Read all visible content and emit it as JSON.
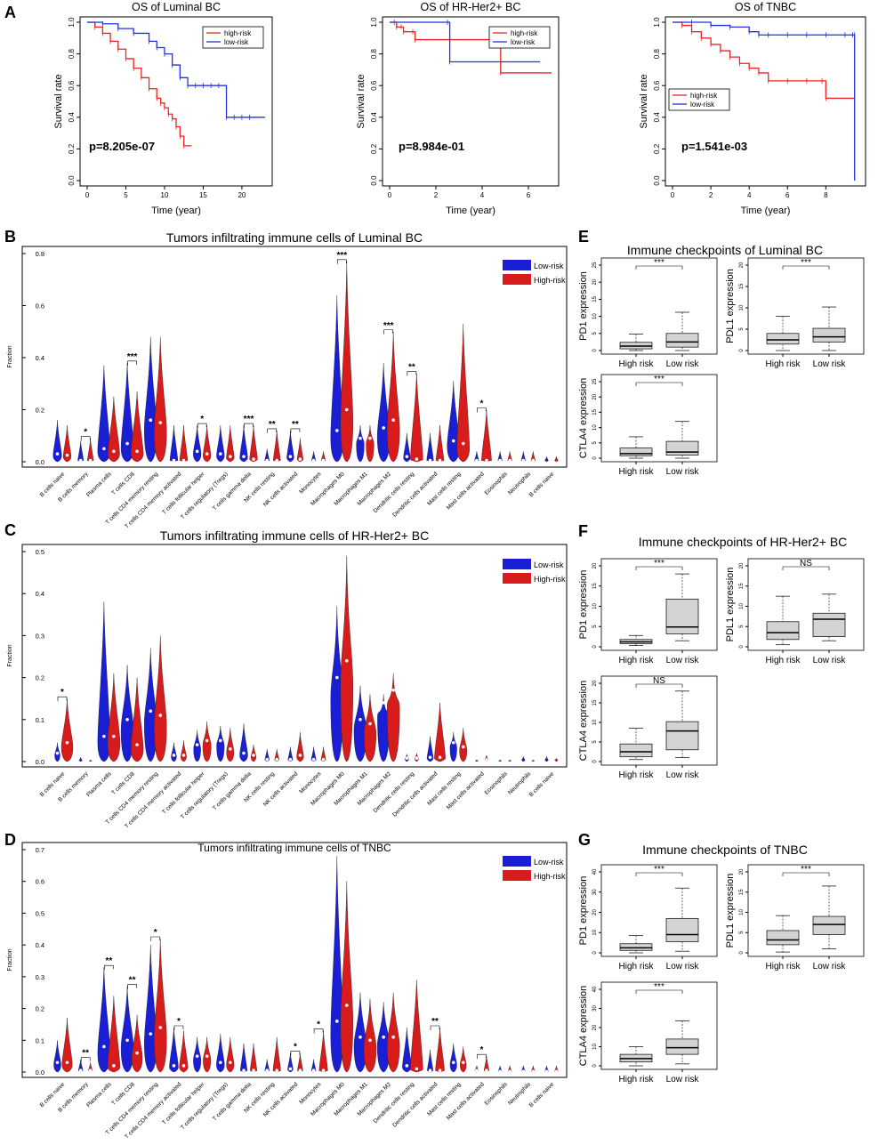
{
  "colors": {
    "high": "#ee2222",
    "low": "#2233dd",
    "violinLow": "#1a1fd6",
    "violinHigh": "#d81b1b",
    "boxFill": "#d3d3d3",
    "axis": "#000000"
  },
  "chart_data": [
    {
      "id": "km-luminal",
      "type": "line",
      "panelLetter": "A",
      "title": "OS of Luminal BC",
      "xlabel": "Time (year)",
      "ylabel": "Survival rate",
      "xlim": [
        0,
        23
      ],
      "ylim": [
        0,
        1
      ],
      "xticks": [
        "0",
        "5",
        "10",
        "15",
        "20"
      ],
      "yticks": [
        "0.0",
        "0.2",
        "0.4",
        "0.6",
        "0.8",
        "1.0"
      ],
      "pvalue": "p=8.205e-07",
      "legend": [
        "high-risk",
        "low-risk"
      ],
      "series": [
        {
          "name": "high-risk",
          "x": [
            0,
            1,
            2,
            3,
            4,
            5,
            6,
            7,
            8,
            9,
            9.5,
            10,
            10.5,
            11,
            11.5,
            12,
            12.5,
            13.5
          ],
          "y": [
            1.0,
            0.97,
            0.93,
            0.88,
            0.83,
            0.77,
            0.71,
            0.65,
            0.58,
            0.52,
            0.49,
            0.46,
            0.42,
            0.39,
            0.34,
            0.28,
            0.22,
            0.22
          ]
        },
        {
          "name": "low-risk",
          "x": [
            0,
            2,
            4,
            6,
            8,
            9,
            10,
            11,
            12,
            13,
            14,
            15,
            16,
            17,
            18,
            19,
            20,
            21,
            23
          ],
          "y": [
            1.0,
            0.99,
            0.96,
            0.93,
            0.88,
            0.84,
            0.8,
            0.73,
            0.65,
            0.6,
            0.6,
            0.6,
            0.6,
            0.6,
            0.4,
            0.4,
            0.4,
            0.4,
            0.4
          ]
        }
      ]
    },
    {
      "id": "km-her2",
      "type": "line",
      "panelLetter": "",
      "title": "OS of HR-Her2+ BC",
      "xlabel": "Time (year)",
      "ylabel": "Survival rate",
      "xlim": [
        0,
        7
      ],
      "ylim": [
        0,
        1
      ],
      "xticks": [
        "0",
        "2",
        "4",
        "6"
      ],
      "yticks": [
        "0.0",
        "0.2",
        "0.4",
        "0.6",
        "0.8",
        "1.0"
      ],
      "pvalue": "p=8.984e-01",
      "legend": [
        "high-risk",
        "low-risk"
      ],
      "series": [
        {
          "name": "high-risk",
          "x": [
            0,
            0.2,
            0.3,
            0.5,
            0.6,
            1.0,
            1.1,
            4.7,
            4.8,
            7.0
          ],
          "y": [
            1.0,
            1.0,
            0.97,
            0.97,
            0.94,
            0.94,
            0.89,
            0.89,
            0.68,
            0.68
          ]
        },
        {
          "name": "low-risk",
          "x": [
            0,
            2.5,
            2.6,
            6.5
          ],
          "y": [
            1.0,
            1.0,
            0.75,
            0.75
          ]
        }
      ]
    },
    {
      "id": "km-tnbc",
      "type": "line",
      "panelLetter": "",
      "title": "OS of TNBC",
      "xlabel": "Time (year)",
      "ylabel": "Survival rate",
      "xlim": [
        0,
        9.7
      ],
      "ylim": [
        0,
        1
      ],
      "xticks": [
        "0",
        "2",
        "4",
        "6",
        "8"
      ],
      "yticks": [
        "0.0",
        "0.2",
        "0.4",
        "0.6",
        "0.8",
        "1.0"
      ],
      "pvalue": "p=1.541e-03",
      "legend": [
        "high-risk",
        "low-risk"
      ],
      "series": [
        {
          "name": "high-risk",
          "x": [
            0,
            0.5,
            1,
            1.5,
            2,
            2.5,
            3,
            3.5,
            4,
            4.5,
            5,
            6,
            7,
            7.8,
            8,
            9.5
          ],
          "y": [
            1.0,
            0.98,
            0.94,
            0.9,
            0.86,
            0.82,
            0.78,
            0.74,
            0.71,
            0.68,
            0.63,
            0.63,
            0.63,
            0.63,
            0.52,
            0.52
          ]
        },
        {
          "name": "low-risk",
          "x": [
            0,
            1,
            2,
            3,
            4,
            4.5,
            5,
            6,
            7,
            8,
            9,
            9.4,
            9.5,
            9.5
          ],
          "y": [
            1.0,
            1.0,
            0.98,
            0.97,
            0.94,
            0.92,
            0.92,
            0.92,
            0.92,
            0.92,
            0.92,
            0.92,
            0.92,
            0.0
          ]
        }
      ]
    },
    {
      "id": "violin-luminal",
      "type": "violin",
      "panelLetter": "B",
      "title": "Tumors infiltrating immune cells of Luminal BC",
      "ylabel": "Fraction",
      "ylim": [
        0,
        0.8
      ],
      "yticks": [
        "0.0",
        "0.2",
        "0.4",
        "0.6",
        "0.8"
      ],
      "legend": [
        "Low-risk",
        "High-risk"
      ],
      "categories": [
        "B cells naive",
        "B cells memory",
        "Plasma cells",
        "T cells CD8",
        "T cells CD4 memory resting",
        "T cells CD4 memory activated",
        "T cells follicular helper",
        "T cells regulatory (Tregs)",
        "T cells gamma delta",
        "NK cells resting",
        "NK cells activated",
        "Monocytes",
        "Macrophages M0",
        "Macrophages M1",
        "Macrophages M2",
        "Dendritic cells resting",
        "Dendritic cells activated",
        "Mast cells resting",
        "Mast cells activated",
        "Eosinophils",
        "Neutrophils",
        "B cells naive"
      ],
      "stars": [
        "",
        "*",
        "",
        "***",
        "",
        "",
        "*",
        "",
        "***",
        "**",
        "**",
        "",
        "***",
        "",
        "***",
        "**",
        "",
        "",
        "*",
        "",
        "",
        ""
      ],
      "low_max": [
        0.16,
        0.08,
        0.37,
        0.38,
        0.48,
        0.14,
        0.14,
        0.14,
        0.14,
        0.05,
        0.12,
        0.04,
        0.64,
        0.14,
        0.38,
        0.11,
        0.11,
        0.31,
        0.04,
        0.04,
        0.04,
        0.02
      ],
      "low_median": [
        0.03,
        0.005,
        0.05,
        0.07,
        0.16,
        0.005,
        0.04,
        0.03,
        0.02,
        0.005,
        0.02,
        0.005,
        0.12,
        0.09,
        0.13,
        0.02,
        0.005,
        0.08,
        0.005,
        0.005,
        0.005,
        0.005
      ],
      "high_max": [
        0.14,
        0.09,
        0.25,
        0.27,
        0.48,
        0.14,
        0.14,
        0.14,
        0.14,
        0.12,
        0.09,
        0.04,
        0.77,
        0.14,
        0.5,
        0.34,
        0.14,
        0.53,
        0.2,
        0.04,
        0.04,
        0.02
      ],
      "high_median": [
        0.025,
        0.005,
        0.04,
        0.04,
        0.15,
        0.005,
        0.03,
        0.02,
        0.01,
        0.005,
        0.01,
        0.005,
        0.2,
        0.09,
        0.16,
        0.01,
        0.005,
        0.07,
        0.005,
        0.005,
        0.005,
        0.005
      ]
    },
    {
      "id": "violin-her2",
      "type": "violin",
      "panelLetter": "C",
      "title": "Tumors infiltrating immune cells of HR-Her2+ BC",
      "ylabel": "Fraction",
      "ylim": [
        0,
        0.5
      ],
      "yticks": [
        "0.0",
        "0.1",
        "0.2",
        "0.3",
        "0.4",
        "0.5"
      ],
      "legend": [
        "Low-risk",
        "High-risk"
      ],
      "categories": [
        "B cells naive",
        "B cells memory",
        "Plasma cells",
        "T cells CD8",
        "T cells CD4 memory resting",
        "T cells CD4 memory activated",
        "T cells follicular helper",
        "T cells regulatory (Tregs)",
        "T cells gamma delta",
        "NK cells resting",
        "NK cells activated",
        "Monocytes",
        "Macrophages M0",
        "Macrophages M1",
        "Macrophages M2",
        "Dendritic cells resting",
        "Dendritic cells activated",
        "Mast cells resting",
        "Mast cells activated",
        "Eosinophils",
        "Neutrophils",
        "B cells naive"
      ],
      "stars": [
        "*",
        "",
        "",
        "",
        "",
        "",
        "",
        "",
        "",
        "",
        "",
        "",
        "",
        "",
        "",
        "",
        "",
        "",
        "",
        "",
        "",
        ""
      ],
      "low_max": [
        0.045,
        0.01,
        0.38,
        0.23,
        0.27,
        0.045,
        0.075,
        0.085,
        0.09,
        0.03,
        0.035,
        0.035,
        0.37,
        0.18,
        0.16,
        0.018,
        0.06,
        0.07,
        0.004,
        0.004,
        0.012,
        0.012
      ],
      "low_median": [
        0.02,
        0.002,
        0.06,
        0.1,
        0.12,
        0.015,
        0.04,
        0.05,
        0.02,
        0.005,
        0.005,
        0.005,
        0.2,
        0.1,
        0.14,
        0.008,
        0.01,
        0.045,
        0.002,
        0.002,
        0.004,
        0.004
      ],
      "high_max": [
        0.15,
        0.004,
        0.21,
        0.2,
        0.3,
        0.05,
        0.095,
        0.08,
        0.04,
        0.03,
        0.07,
        0.035,
        0.49,
        0.16,
        0.21,
        0.02,
        0.14,
        0.08,
        0.015,
        0.004,
        0.004,
        0.008
      ],
      "high_median": [
        0.045,
        0.002,
        0.06,
        0.04,
        0.11,
        0.015,
        0.05,
        0.03,
        0.015,
        0.005,
        0.015,
        0.005,
        0.24,
        0.09,
        0.17,
        0.008,
        0.01,
        0.035,
        0.004,
        0.002,
        0.002,
        0.004
      ]
    },
    {
      "id": "violin-tnbc",
      "type": "violin",
      "panelLetter": "D",
      "title": "Tumors infiltrating immune cells of TNBC",
      "ylabel": "Fraction",
      "ylim": [
        0,
        0.7
      ],
      "yticks": [
        "0.0",
        "0.1",
        "0.2",
        "0.3",
        "0.4",
        "0.5",
        "0.6",
        "0.7"
      ],
      "legend": [
        "Low-risk",
        "High-risk"
      ],
      "categories": [
        "B cells naive",
        "B cells memory",
        "Plasma cells",
        "T cells CD8",
        "T cells CD4 memory resting",
        "T cells CD4 memory activated",
        "T cells follicular helper",
        "T cells regulatory (Tregs)",
        "T cells gamma delta",
        "NK cells resting",
        "NK cells activated",
        "Monocytes",
        "Macrophages M0",
        "Macrophages M1",
        "Macrophages M2",
        "Dendritic cells resting",
        "Dendritic cells activated",
        "Mast cells resting",
        "Mast cells activated",
        "Eosinophils",
        "Neutrophils",
        "B cells naive"
      ],
      "stars": [
        "",
        "**",
        "**",
        "**",
        "*",
        "*",
        "",
        "",
        "",
        "",
        "*",
        "*",
        "",
        "",
        "",
        "",
        "**",
        "",
        "*",
        "",
        "",
        ""
      ],
      "low_max": [
        0.1,
        0.04,
        0.33,
        0.27,
        0.4,
        0.14,
        0.11,
        0.12,
        0.09,
        0.04,
        0.06,
        0.04,
        0.68,
        0.25,
        0.22,
        0.14,
        0.07,
        0.09,
        0.02,
        0.02,
        0.02,
        0.02
      ],
      "low_median": [
        0.03,
        0.005,
        0.08,
        0.1,
        0.12,
        0.02,
        0.05,
        0.03,
        0.005,
        0.005,
        0.01,
        0.005,
        0.16,
        0.11,
        0.11,
        0.02,
        0.005,
        0.03,
        0.005,
        0.002,
        0.002,
        0.002
      ],
      "high_max": [
        0.17,
        0.03,
        0.24,
        0.18,
        0.42,
        0.13,
        0.11,
        0.11,
        0.09,
        0.11,
        0.06,
        0.13,
        0.6,
        0.23,
        0.25,
        0.29,
        0.14,
        0.08,
        0.05,
        0.02,
        0.02,
        0.02
      ],
      "high_median": [
        0.03,
        0.005,
        0.02,
        0.06,
        0.14,
        0.02,
        0.05,
        0.03,
        0.005,
        0.005,
        0.005,
        0.005,
        0.21,
        0.1,
        0.11,
        0.01,
        0.005,
        0.03,
        0.005,
        0.002,
        0.002,
        0.002
      ]
    },
    {
      "id": "box-lum-pd1",
      "type": "box",
      "panelLetter": "E",
      "panelTitle": "Immune checkpoints of Luminal BC",
      "ylabel": "PD1 expression",
      "ylim": [
        0,
        25
      ],
      "yticks": [
        "0",
        "5",
        "10",
        "15",
        "20",
        "25"
      ],
      "categories": [
        "High risk",
        "Low risk"
      ],
      "sig": "***",
      "boxes": [
        {
          "min": 0,
          "q1": 0.5,
          "median": 1.3,
          "q3": 2.4,
          "max": 4.8
        },
        {
          "min": 0,
          "q1": 1.0,
          "median": 2.5,
          "q3": 5.0,
          "max": 11.2
        }
      ]
    },
    {
      "id": "box-lum-pdl1",
      "type": "box",
      "panelLetter": "",
      "panelTitle": "",
      "ylabel": "PDL1 expression",
      "ylim": [
        0,
        20
      ],
      "yticks": [
        "0",
        "5",
        "10",
        "15",
        "20"
      ],
      "categories": [
        "High risk",
        "Low risk"
      ],
      "sig": "***",
      "boxes": [
        {
          "min": 0,
          "q1": 1.5,
          "median": 2.5,
          "q3": 4.0,
          "max": 8.0
        },
        {
          "min": 0,
          "q1": 2.0,
          "median": 3.2,
          "q3": 5.2,
          "max": 10.2
        }
      ]
    },
    {
      "id": "box-lum-ctla4",
      "type": "box",
      "panelLetter": "",
      "panelTitle": "",
      "ylabel": "CTLA4 expression",
      "ylim": [
        0,
        25
      ],
      "yticks": [
        "0",
        "5",
        "10",
        "15",
        "20",
        "25"
      ],
      "categories": [
        "High risk",
        "Low risk"
      ],
      "sig": "***",
      "boxes": [
        {
          "min": 0,
          "q1": 0.8,
          "median": 1.5,
          "q3": 3.3,
          "max": 7.0
        },
        {
          "min": 0,
          "q1": 1.0,
          "median": 2.0,
          "q3": 5.5,
          "max": 12.0
        }
      ]
    },
    {
      "id": "box-her2-pd1",
      "type": "box",
      "panelLetter": "F",
      "panelTitle": "Immune checkpoints of HR-Her2+ BC",
      "ylabel": "PD1 expression",
      "ylim": [
        0,
        20
      ],
      "yticks": [
        "0",
        "5",
        "10",
        "15",
        "20"
      ],
      "categories": [
        "High risk",
        "Low risk"
      ],
      "sig": "***",
      "boxes": [
        {
          "min": 0.3,
          "q1": 0.8,
          "median": 1.2,
          "q3": 1.8,
          "max": 2.8
        },
        {
          "min": 1.5,
          "q1": 3.2,
          "median": 4.9,
          "q3": 11.8,
          "max": 18.0
        }
      ]
    },
    {
      "id": "box-her2-pdl1",
      "type": "box",
      "panelLetter": "",
      "panelTitle": "",
      "ylabel": "PDL1 expression",
      "ylim": [
        0,
        20
      ],
      "yticks": [
        "0",
        "5",
        "10",
        "15",
        "20"
      ],
      "categories": [
        "High risk",
        "Low risk"
      ],
      "sig": "NS",
      "boxes": [
        {
          "min": 0.5,
          "q1": 1.8,
          "median": 3.5,
          "q3": 6.2,
          "max": 12.5
        },
        {
          "min": 1.5,
          "q1": 2.5,
          "median": 6.8,
          "q3": 8.3,
          "max": 13.0
        }
      ]
    },
    {
      "id": "box-her2-ctla4",
      "type": "box",
      "panelLetter": "",
      "panelTitle": "",
      "ylabel": "CTLA4 expression",
      "ylim": [
        0,
        20
      ],
      "yticks": [
        "0",
        "5",
        "10",
        "15",
        "20"
      ],
      "categories": [
        "High risk",
        "Low risk"
      ],
      "sig": "NS",
      "boxes": [
        {
          "min": 0.5,
          "q1": 1.2,
          "median": 2.5,
          "q3": 4.5,
          "max": 8.5
        },
        {
          "min": 1.0,
          "q1": 3.0,
          "median": 7.8,
          "q3": 10.2,
          "max": 18.0
        }
      ]
    },
    {
      "id": "box-tnbc-pd1",
      "type": "box",
      "panelLetter": "G",
      "panelTitle": "Immune checkpoints of TNBC",
      "ylabel": "PD1 expression",
      "ylim": [
        0,
        40
      ],
      "yticks": [
        "0",
        "10",
        "20",
        "30",
        "40"
      ],
      "categories": [
        "High risk",
        "Low risk"
      ],
      "sig": "***",
      "boxes": [
        {
          "min": 0,
          "q1": 1.2,
          "median": 2.5,
          "q3": 4.5,
          "max": 8.5
        },
        {
          "min": 0.8,
          "q1": 5.5,
          "median": 9.0,
          "q3": 17.0,
          "max": 32.0
        }
      ]
    },
    {
      "id": "box-tnbc-pdl1",
      "type": "box",
      "panelLetter": "",
      "panelTitle": "",
      "ylabel": "PDL1 expression",
      "ylim": [
        0,
        20
      ],
      "yticks": [
        "0",
        "5",
        "10",
        "15",
        "20"
      ],
      "categories": [
        "High risk",
        "Low risk"
      ],
      "sig": "***",
      "boxes": [
        {
          "min": 0.2,
          "q1": 2.0,
          "median": 3.2,
          "q3": 5.5,
          "max": 9.2
        },
        {
          "min": 1.0,
          "q1": 4.5,
          "median": 7.0,
          "q3": 9.0,
          "max": 16.5
        }
      ]
    },
    {
      "id": "box-tnbc-ctla4",
      "type": "box",
      "panelLetter": "",
      "panelTitle": "",
      "ylabel": "CTLA4 expression",
      "ylim": [
        0,
        40
      ],
      "yticks": [
        "0",
        "10",
        "20",
        "30",
        "40"
      ],
      "categories": [
        "High risk",
        "Low risk"
      ],
      "sig": "***",
      "boxes": [
        {
          "min": 0,
          "q1": 2.0,
          "median": 3.8,
          "q3": 6.0,
          "max": 10.0
        },
        {
          "min": 1.0,
          "q1": 6.0,
          "median": 9.5,
          "q3": 14.0,
          "max": 23.5
        }
      ]
    }
  ]
}
